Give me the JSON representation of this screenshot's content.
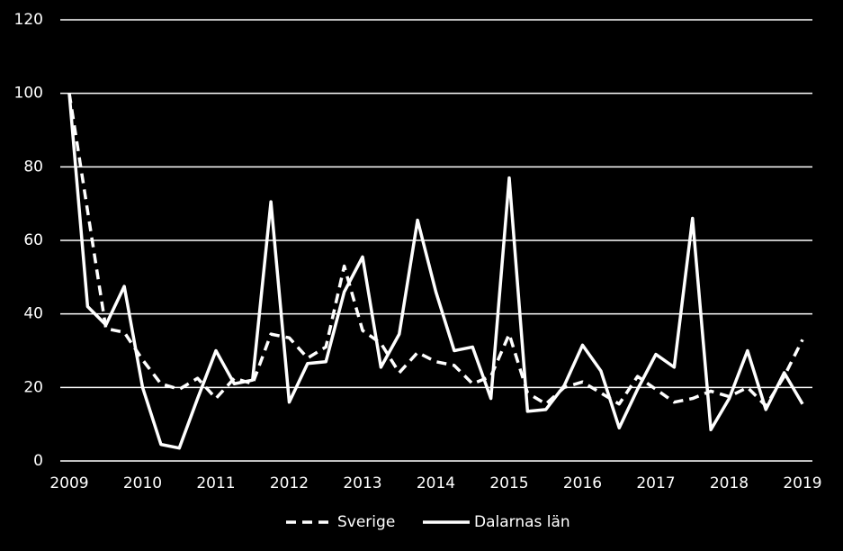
{
  "chart_data": {
    "type": "line",
    "categories": [
      "2009",
      null,
      null,
      null,
      "2010",
      null,
      null,
      null,
      "2011",
      null,
      null,
      null,
      "2012",
      null,
      null,
      null,
      "2013",
      null,
      null,
      null,
      "2014",
      null,
      null,
      null,
      "2015",
      null,
      null,
      null,
      "2016",
      null,
      null,
      null,
      "2017",
      null,
      null,
      null,
      "2018",
      null,
      null,
      null,
      "2019"
    ],
    "series": [
      {
        "name": "Sverige",
        "color": "#ffffff",
        "dash": true,
        "values": [
          100,
          68,
          36,
          35,
          27.5,
          21,
          19.5,
          22.5,
          17,
          22.5,
          21,
          34.5,
          33.5,
          28,
          31,
          53,
          35.5,
          32,
          24,
          29.5,
          27,
          26,
          21,
          23,
          34.5,
          18.5,
          15.5,
          20,
          21.5,
          18.5,
          15.5,
          23,
          19.5,
          16,
          17,
          19,
          17.5,
          20,
          15,
          23,
          33
        ]
      },
      {
        "name": "Dalarnas län",
        "color": "#ffffff",
        "dash": false,
        "values": [
          100,
          42,
          37,
          47.5,
          20,
          4.5,
          3.5,
          17,
          30,
          21,
          22,
          70.5,
          16,
          26.5,
          27,
          46,
          55.5,
          25.5,
          34.5,
          65.5,
          46,
          30,
          31,
          17,
          77,
          13.5,
          14,
          20.5,
          31.5,
          24.5,
          9,
          19.5,
          29,
          25.5,
          66,
          8.5,
          17,
          30,
          14,
          24,
          15.5
        ]
      }
    ],
    "ylim": [
      0,
      120
    ],
    "yticks": [
      0,
      20,
      40,
      60,
      80,
      100,
      120
    ],
    "grid": true,
    "legend": "bottom"
  }
}
